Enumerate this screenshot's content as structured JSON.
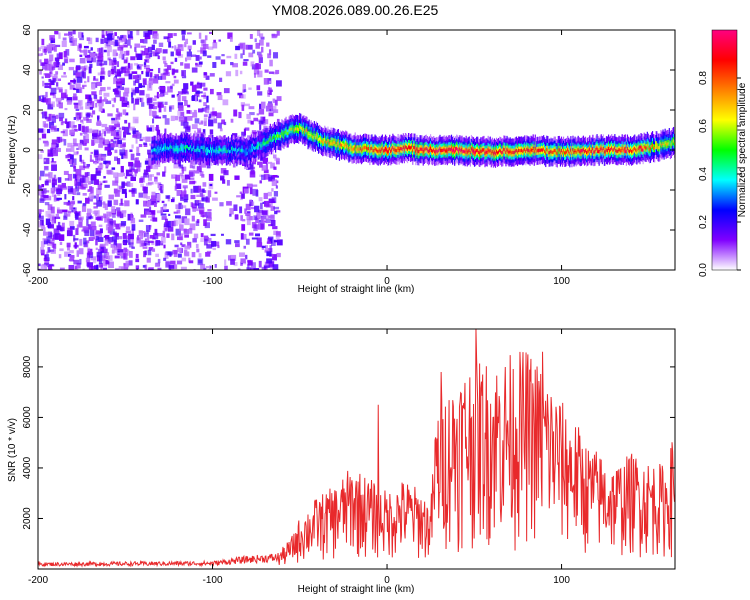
{
  "title": "YM08.2026.089.00.26.E25",
  "chart_data": [
    {
      "type": "heatmap",
      "xlabel": "Height of straight line (km)",
      "ylabel": "Frequency (Hz)",
      "xlim": [
        -200,
        165
      ],
      "ylim": [
        -60,
        60
      ],
      "xticks": [
        -200,
        -100,
        0,
        100
      ],
      "yticks": [
        -60,
        -40,
        -20,
        0,
        20,
        40,
        60
      ],
      "colorbar": {
        "label": "Normalized spectral amplitude",
        "range": [
          0,
          1
        ],
        "ticks": [
          "0.0",
          "0.2",
          "0.4",
          "0.6",
          "0.8"
        ],
        "tick_values": [
          0.0,
          0.2,
          0.4,
          0.6,
          0.8
        ],
        "colormap": [
          "#ffffff",
          "#8000ff",
          "#0000ff",
          "#00ffff",
          "#00ff00",
          "#ffff00",
          "#ff8000",
          "#ff0000",
          "#ff0080"
        ]
      },
      "noise_region_km": [
        -200,
        -63
      ],
      "ridge": {
        "x": [
          -135,
          -120,
          -100,
          -90,
          -80,
          -72,
          -66,
          -60,
          -55,
          -50,
          -45,
          -40,
          -35,
          -30,
          -20,
          -10,
          0,
          10,
          20,
          40,
          60,
          80,
          100,
          120,
          140,
          155,
          165
        ],
        "y": [
          0,
          1,
          0,
          0,
          -1,
          3,
          6,
          8,
          10,
          11,
          8,
          6,
          4,
          3,
          1,
          0,
          0,
          1,
          0,
          0,
          -1,
          0,
          -1,
          0,
          0,
          2,
          4
        ],
        "peak_amplitude": [
          0.35,
          0.4,
          0.4,
          0.38,
          0.35,
          0.45,
          0.5,
          0.55,
          0.6,
          0.65,
          0.65,
          0.65,
          0.7,
          0.7,
          0.75,
          0.8,
          0.9,
          0.9,
          0.92,
          0.95,
          0.9,
          0.85,
          0.8,
          0.9,
          0.85,
          0.7,
          0.6
        ]
      }
    },
    {
      "type": "line",
      "xlabel": "Height of straight line (km)",
      "ylabel": "SNR (10 * v/v)",
      "xlim": [
        -200,
        165
      ],
      "ylim": [
        0,
        9500
      ],
      "xticks": [
        -200,
        -100,
        0,
        100
      ],
      "yticks": [
        2000,
        4000,
        6000,
        8000
      ],
      "series": [
        {
          "name": "SNR",
          "color": "#e8292b",
          "envelope_x": [
            -200,
            -100,
            -80,
            -63,
            -55,
            -50,
            -40,
            -30,
            -20,
            -10,
            0,
            10,
            20,
            25,
            28,
            30,
            40,
            50,
            60,
            70,
            80,
            90,
            100,
            110,
            115,
            120,
            130,
            140,
            150,
            160,
            165
          ],
          "envelope_y": [
            250,
            300,
            500,
            600,
            1200,
            2000,
            2800,
            3200,
            4000,
            3500,
            3000,
            3500,
            3000,
            2500,
            6000,
            6500,
            7500,
            8200,
            8000,
            8300,
            8500,
            7800,
            6500,
            5500,
            4800,
            4600,
            4000,
            4500,
            4200,
            4000,
            5500
          ],
          "peaks": [
            {
              "x": -5,
              "y": 6500
            },
            {
              "x": 31,
              "y": 7800
            },
            {
              "x": 51,
              "y": 9500
            },
            {
              "x": 89,
              "y": 8600
            }
          ]
        }
      ]
    }
  ]
}
